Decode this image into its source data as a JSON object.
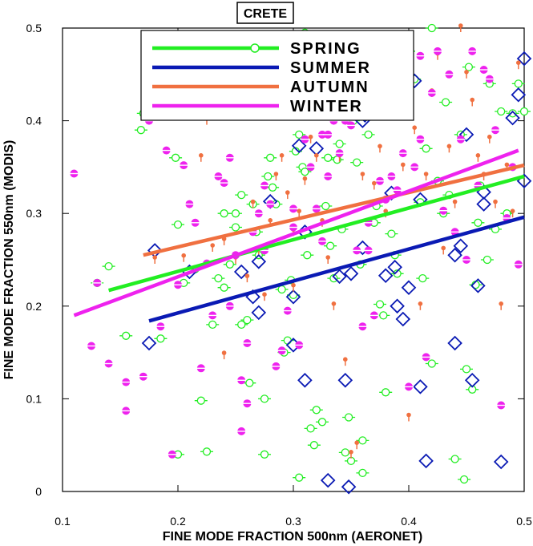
{
  "chart_data": {
    "type": "scatter",
    "title": "CRETE",
    "xlabel": "FINE  MODE FRACTION 500nm (AERONET)",
    "ylabel": "FINE MODE FRACTION 550nm (MODIS)",
    "xlim": [
      0.1,
      0.5
    ],
    "ylim": [
      0,
      0.5
    ],
    "xticks": [
      "0.1",
      "0.2",
      "0.3",
      "0.4",
      "0.5"
    ],
    "yticks": [
      "0",
      "0.1",
      "0.2",
      "0.3",
      "0.4",
      "0.5"
    ],
    "grid": false,
    "legend_position": "top",
    "series": [
      {
        "name": "SPRING",
        "color": "#22ee22",
        "marker": "circle-dash",
        "fit": {
          "x": [
            0.14,
            0.5
          ],
          "y": [
            0.217,
            0.34
          ]
        },
        "points": [
          [
            0.13,
            0.225
          ],
          [
            0.14,
            0.243
          ],
          [
            0.155,
            0.168
          ],
          [
            0.17,
            0.408
          ],
          [
            0.168,
            0.39
          ],
          [
            0.185,
            0.165
          ],
          [
            0.195,
            0.433
          ],
          [
            0.198,
            0.36
          ],
          [
            0.2,
            0.288
          ],
          [
            0.205,
            0.225
          ],
          [
            0.215,
            0.24
          ],
          [
            0.22,
            0.415
          ],
          [
            0.22,
            0.098
          ],
          [
            0.225,
            0.043
          ],
          [
            0.23,
            0.18
          ],
          [
            0.235,
            0.23
          ],
          [
            0.24,
            0.22
          ],
          [
            0.245,
            0.245
          ],
          [
            0.25,
            0.285
          ],
          [
            0.25,
            0.3
          ],
          [
            0.255,
            0.32
          ],
          [
            0.255,
            0.18
          ],
          [
            0.26,
            0.185
          ],
          [
            0.262,
            0.117
          ],
          [
            0.265,
            0.31
          ],
          [
            0.268,
            0.28
          ],
          [
            0.27,
            0.255
          ],
          [
            0.275,
            0.04
          ],
          [
            0.275,
            0.1
          ],
          [
            0.278,
            0.34
          ],
          [
            0.28,
            0.36
          ],
          [
            0.282,
            0.328
          ],
          [
            0.285,
            0.31
          ],
          [
            0.288,
            0.408
          ],
          [
            0.29,
            0.218
          ],
          [
            0.292,
            0.15
          ],
          [
            0.295,
            0.163
          ],
          [
            0.298,
            0.228
          ],
          [
            0.3,
            0.212
          ],
          [
            0.302,
            0.367
          ],
          [
            0.305,
            0.385
          ],
          [
            0.305,
            0.015
          ],
          [
            0.308,
            0.35
          ],
          [
            0.31,
            0.345
          ],
          [
            0.312,
            0.255
          ],
          [
            0.315,
            0.068
          ],
          [
            0.318,
            0.05
          ],
          [
            0.32,
            0.088
          ],
          [
            0.325,
            0.075
          ],
          [
            0.328,
            0.308
          ],
          [
            0.33,
            0.36
          ],
          [
            0.332,
            0.265
          ],
          [
            0.335,
            0.23
          ],
          [
            0.338,
            0.358
          ],
          [
            0.34,
            0.375
          ],
          [
            0.342,
            0.283
          ],
          [
            0.345,
            0.042
          ],
          [
            0.348,
            0.08
          ],
          [
            0.35,
            0.033
          ],
          [
            0.352,
            0.4
          ],
          [
            0.355,
            0.355
          ],
          [
            0.358,
            0.245
          ],
          [
            0.36,
            0.055
          ],
          [
            0.362,
            0.438
          ],
          [
            0.365,
            0.385
          ],
          [
            0.368,
            0.465
          ],
          [
            0.37,
            0.29
          ],
          [
            0.372,
            0.308
          ],
          [
            0.375,
            0.202
          ],
          [
            0.378,
            0.19
          ],
          [
            0.38,
            0.107
          ],
          [
            0.382,
            0.41
          ],
          [
            0.385,
            0.278
          ],
          [
            0.388,
            0.255
          ],
          [
            0.39,
            0.235
          ],
          [
            0.392,
            0.416
          ],
          [
            0.395,
            0.42
          ],
          [
            0.398,
            0.44
          ],
          [
            0.4,
            0.475
          ],
          [
            0.405,
            0.445
          ],
          [
            0.41,
            0.312
          ],
          [
            0.412,
            0.23
          ],
          [
            0.415,
            0.37
          ],
          [
            0.42,
            0.5
          ],
          [
            0.425,
            0.335
          ],
          [
            0.43,
            0.3
          ],
          [
            0.432,
            0.42
          ],
          [
            0.435,
            0.32
          ],
          [
            0.44,
            0.035
          ],
          [
            0.445,
            0.385
          ],
          [
            0.448,
            0.013
          ],
          [
            0.45,
            0.132
          ],
          [
            0.452,
            0.458
          ],
          [
            0.455,
            0.11
          ],
          [
            0.458,
            0.223
          ],
          [
            0.46,
            0.29
          ],
          [
            0.462,
            0.33
          ],
          [
            0.468,
            0.25
          ],
          [
            0.47,
            0.44
          ],
          [
            0.475,
            0.283
          ],
          [
            0.48,
            0.41
          ],
          [
            0.485,
            0.3
          ],
          [
            0.49,
            0.408
          ],
          [
            0.495,
            0.44
          ],
          [
            0.5,
            0.41
          ],
          [
            0.2,
            0.04
          ],
          [
            0.31,
            0.495
          ],
          [
            0.42,
            0.138
          ],
          [
            0.36,
            0.02
          ],
          [
            0.24,
            0.3
          ]
        ]
      },
      {
        "name": "SUMMER",
        "color": "#0a1ab4",
        "marker": "diamond",
        "fit": {
          "x": [
            0.175,
            0.5
          ],
          "y": [
            0.184,
            0.296
          ]
        },
        "points": [
          [
            0.175,
            0.16
          ],
          [
            0.18,
            0.26
          ],
          [
            0.21,
            0.237
          ],
          [
            0.255,
            0.237
          ],
          [
            0.265,
            0.21
          ],
          [
            0.27,
            0.193
          ],
          [
            0.27,
            0.248
          ],
          [
            0.28,
            0.313
          ],
          [
            0.3,
            0.158
          ],
          [
            0.3,
            0.21
          ],
          [
            0.305,
            0.373
          ],
          [
            0.31,
            0.12
          ],
          [
            0.31,
            0.28
          ],
          [
            0.32,
            0.37
          ],
          [
            0.33,
            0.012
          ],
          [
            0.34,
            0.232
          ],
          [
            0.345,
            0.12
          ],
          [
            0.348,
            0.005
          ],
          [
            0.35,
            0.235
          ],
          [
            0.36,
            0.4
          ],
          [
            0.36,
            0.263
          ],
          [
            0.362,
            0.406
          ],
          [
            0.38,
            0.233
          ],
          [
            0.385,
            0.322
          ],
          [
            0.388,
            0.242
          ],
          [
            0.39,
            0.2
          ],
          [
            0.395,
            0.186
          ],
          [
            0.4,
            0.22
          ],
          [
            0.405,
            0.443
          ],
          [
            0.41,
            0.113
          ],
          [
            0.41,
            0.315
          ],
          [
            0.415,
            0.033
          ],
          [
            0.44,
            0.255
          ],
          [
            0.44,
            0.16
          ],
          [
            0.445,
            0.265
          ],
          [
            0.45,
            0.385
          ],
          [
            0.455,
            0.12
          ],
          [
            0.46,
            0.222
          ],
          [
            0.465,
            0.31
          ],
          [
            0.465,
            0.323
          ],
          [
            0.48,
            0.032
          ],
          [
            0.49,
            0.403
          ],
          [
            0.495,
            0.428
          ],
          [
            0.5,
            0.335
          ],
          [
            0.5,
            0.467
          ]
        ]
      },
      {
        "name": "AUTUMN",
        "color": "#f07040",
        "marker": "pin",
        "fit": {
          "x": [
            0.17,
            0.5
          ],
          "y": [
            0.255,
            0.352
          ]
        },
        "points": [
          [
            0.18,
            0.25
          ],
          [
            0.2,
            0.42
          ],
          [
            0.205,
            0.252
          ],
          [
            0.22,
            0.36
          ],
          [
            0.225,
            0.4
          ],
          [
            0.23,
            0.263
          ],
          [
            0.24,
            0.147
          ],
          [
            0.24,
            0.27
          ],
          [
            0.25,
            0.48
          ],
          [
            0.25,
            0.25
          ],
          [
            0.26,
            0.23
          ],
          [
            0.265,
            0.31
          ],
          [
            0.27,
            0.26
          ],
          [
            0.275,
            0.21
          ],
          [
            0.28,
            0.29
          ],
          [
            0.285,
            0.34
          ],
          [
            0.29,
            0.36
          ],
          [
            0.295,
            0.32
          ],
          [
            0.3,
            0.28
          ],
          [
            0.305,
            0.3
          ],
          [
            0.31,
            0.335
          ],
          [
            0.315,
            0.38
          ],
          [
            0.32,
            0.36
          ],
          [
            0.325,
            0.29
          ],
          [
            0.33,
            0.25
          ],
          [
            0.335,
            0.2
          ],
          [
            0.34,
            0.46
          ],
          [
            0.345,
            0.14
          ],
          [
            0.35,
            0.04
          ],
          [
            0.355,
            0.05
          ],
          [
            0.36,
            0.34
          ],
          [
            0.365,
            0.42
          ],
          [
            0.37,
            0.33
          ],
          [
            0.375,
            0.37
          ],
          [
            0.38,
            0.3
          ],
          [
            0.385,
            0.45
          ],
          [
            0.39,
            0.48
          ],
          [
            0.395,
            0.35
          ],
          [
            0.4,
            0.08
          ],
          [
            0.405,
            0.39
          ],
          [
            0.41,
            0.2
          ],
          [
            0.415,
            0.34
          ],
          [
            0.42,
            0.43
          ],
          [
            0.425,
            0.47
          ],
          [
            0.43,
            0.26
          ],
          [
            0.435,
            0.37
          ],
          [
            0.44,
            0.31
          ],
          [
            0.445,
            0.5
          ],
          [
            0.45,
            0.45
          ],
          [
            0.455,
            0.42
          ],
          [
            0.46,
            0.36
          ],
          [
            0.465,
            0.34
          ],
          [
            0.47,
            0.38
          ],
          [
            0.475,
            0.31
          ],
          [
            0.48,
            0.2
          ],
          [
            0.485,
            0.35
          ],
          [
            0.49,
            0.3
          ],
          [
            0.495,
            0.46
          ],
          [
            0.34,
            0.36
          ],
          [
            0.3,
            0.22
          ]
        ]
      },
      {
        "name": "WINTER",
        "color": "#ee22ee",
        "marker": "filled-circle-dash",
        "fit": {
          "x": [
            0.11,
            0.495
          ],
          "y": [
            0.19,
            0.368
          ]
        },
        "points": [
          [
            0.11,
            0.343
          ],
          [
            0.125,
            0.157
          ],
          [
            0.13,
            0.225
          ],
          [
            0.14,
            0.138
          ],
          [
            0.155,
            0.118
          ],
          [
            0.155,
            0.087
          ],
          [
            0.17,
            0.124
          ],
          [
            0.175,
            0.4
          ],
          [
            0.185,
            0.178
          ],
          [
            0.19,
            0.368
          ],
          [
            0.195,
            0.04
          ],
          [
            0.2,
            0.223
          ],
          [
            0.205,
            0.352
          ],
          [
            0.21,
            0.31
          ],
          [
            0.215,
            0.29
          ],
          [
            0.22,
            0.133
          ],
          [
            0.225,
            0.246
          ],
          [
            0.23,
            0.19
          ],
          [
            0.235,
            0.34
          ],
          [
            0.24,
            0.333
          ],
          [
            0.245,
            0.36
          ],
          [
            0.25,
            0.255
          ],
          [
            0.255,
            0.065
          ],
          [
            0.255,
            0.12
          ],
          [
            0.26,
            0.095
          ],
          [
            0.26,
            0.16
          ],
          [
            0.265,
            0.28
          ],
          [
            0.27,
            0.3
          ],
          [
            0.275,
            0.26
          ],
          [
            0.28,
            0.31
          ],
          [
            0.285,
            0.135
          ],
          [
            0.29,
            0.152
          ],
          [
            0.295,
            0.195
          ],
          [
            0.3,
            0.285
          ],
          [
            0.3,
            0.305
          ],
          [
            0.305,
            0.158
          ],
          [
            0.31,
            0.38
          ],
          [
            0.315,
            0.35
          ],
          [
            0.32,
            0.305
          ],
          [
            0.325,
            0.385
          ],
          [
            0.33,
            0.385
          ],
          [
            0.335,
            0.4
          ],
          [
            0.34,
            0.365
          ],
          [
            0.345,
            0.4
          ],
          [
            0.35,
            0.395
          ],
          [
            0.355,
            0.26
          ],
          [
            0.36,
            0.178
          ],
          [
            0.365,
            0.26
          ],
          [
            0.37,
            0.19
          ],
          [
            0.375,
            0.335
          ],
          [
            0.38,
            0.315
          ],
          [
            0.385,
            0.34
          ],
          [
            0.39,
            0.325
          ],
          [
            0.395,
            0.365
          ],
          [
            0.4,
            0.113
          ],
          [
            0.405,
            0.35
          ],
          [
            0.41,
            0.38
          ],
          [
            0.415,
            0.145
          ],
          [
            0.42,
            0.43
          ],
          [
            0.425,
            0.475
          ],
          [
            0.43,
            0.303
          ],
          [
            0.435,
            0.45
          ],
          [
            0.44,
            0.28
          ],
          [
            0.445,
            0.38
          ],
          [
            0.45,
            0.25
          ],
          [
            0.455,
            0.475
          ],
          [
            0.46,
            0.33
          ],
          [
            0.465,
            0.455
          ],
          [
            0.47,
            0.445
          ],
          [
            0.475,
            0.39
          ],
          [
            0.48,
            0.093
          ],
          [
            0.485,
            0.295
          ],
          [
            0.49,
            0.35
          ],
          [
            0.495,
            0.245
          ],
          [
            0.245,
            0.2
          ],
          [
            0.325,
            0.27
          ],
          [
            0.41,
            0.47
          ],
          [
            0.365,
            0.29
          ],
          [
            0.275,
            0.33
          ],
          [
            0.33,
            0.34
          ]
        ]
      }
    ]
  }
}
